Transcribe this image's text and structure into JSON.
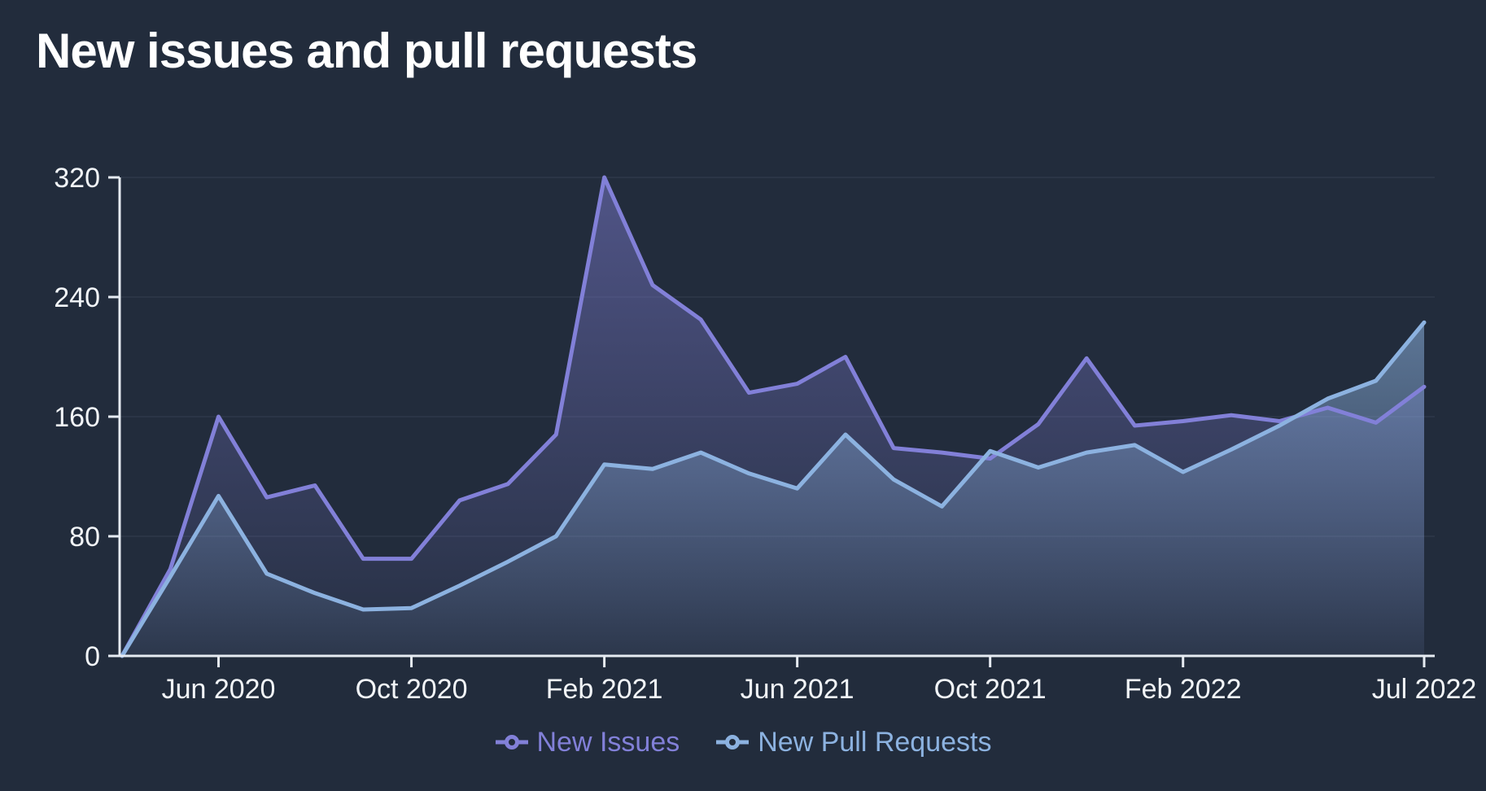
{
  "page": {
    "title": "New issues and pull requests"
  },
  "colors": {
    "background": "#222c3c",
    "axis": "#e6ebf2",
    "label_text": "#f2f5f8",
    "title_text": "#ffffff",
    "grid": "#2b3546",
    "issues": "#8280d8",
    "pull_requests": "#8cb2e0"
  },
  "legend": {
    "items": [
      {
        "id": "issues",
        "label": "New Issues"
      },
      {
        "id": "pull_requests",
        "label": "New Pull Requests"
      }
    ]
  },
  "chart_data": {
    "type": "area",
    "title": "New issues and pull requests",
    "xlabel": "",
    "ylabel": "",
    "ylim": [
      0,
      320
    ],
    "y_ticks": [
      0,
      80,
      160,
      240,
      320
    ],
    "grid": true,
    "legend_position": "bottom",
    "x": [
      "Apr 2020",
      "May 2020",
      "Jun 2020",
      "Jul 2020",
      "Aug 2020",
      "Sep 2020",
      "Oct 2020",
      "Nov 2020",
      "Dec 2020",
      "Jan 2021",
      "Feb 2021",
      "Mar 2021",
      "Apr 2021",
      "May 2021",
      "Jun 2021",
      "Jul 2021",
      "Aug 2021",
      "Sep 2021",
      "Oct 2021",
      "Nov 2021",
      "Dec 2021",
      "Jan 2022",
      "Feb 2022",
      "Mar 2022",
      "Apr 2022",
      "May 2022",
      "Jun 2022",
      "Jul 2022"
    ],
    "x_tick_labels": [
      "Jun 2020",
      "Oct 2020",
      "Feb 2021",
      "Jun 2021",
      "Oct 2021",
      "Feb 2022",
      "Jul 2022"
    ],
    "x_tick_indices": [
      2,
      6,
      10,
      14,
      18,
      22,
      27
    ],
    "series": [
      {
        "name": "New Issues",
        "color": "#8280d8",
        "values": [
          0,
          58,
          160,
          106,
          114,
          65,
          65,
          104,
          115,
          148,
          320,
          248,
          225,
          176,
          182,
          200,
          139,
          136,
          132,
          155,
          199,
          154,
          157,
          161,
          157,
          166,
          156,
          180
        ]
      },
      {
        "name": "New Pull Requests",
        "color": "#8cb2e0",
        "values": [
          0,
          53,
          107,
          55,
          42,
          31,
          32,
          47,
          63,
          80,
          128,
          125,
          136,
          122,
          112,
          148,
          118,
          100,
          137,
          126,
          136,
          141,
          123,
          138,
          154,
          172,
          184,
          223
        ]
      }
    ]
  }
}
